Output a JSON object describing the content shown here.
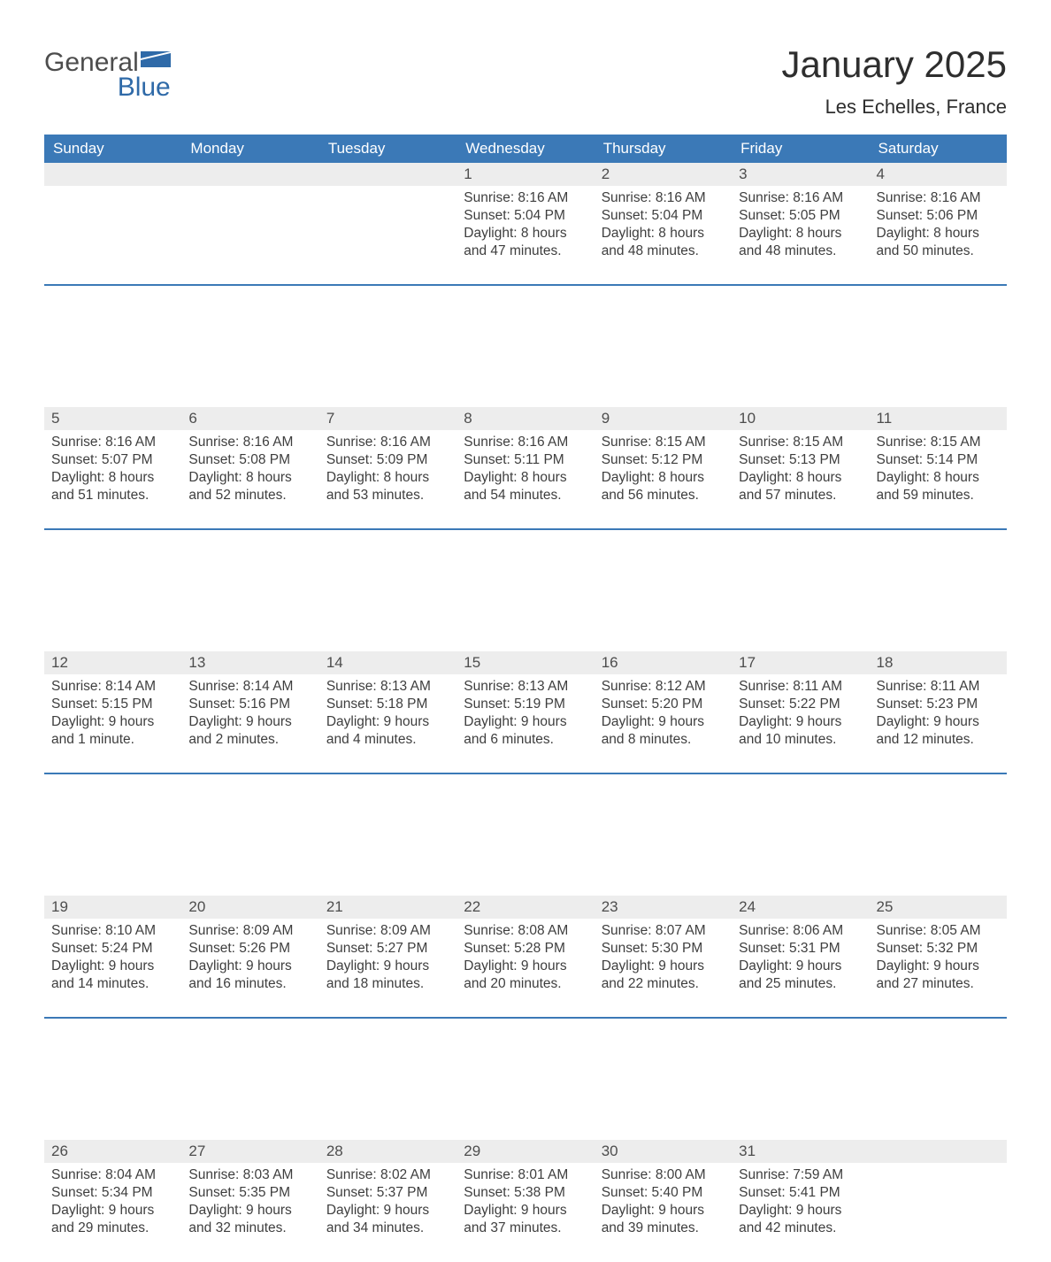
{
  "brand": {
    "word1": "General",
    "word2": "Blue",
    "colors": {
      "word1": "#4d4d4d",
      "word2": "#2f6aa8",
      "shape": "#2f6aa8"
    }
  },
  "title": {
    "month": "January 2025",
    "location": "Les Echelles, France",
    "month_fontsize": 42,
    "location_fontsize": 22,
    "text_color": "#2e2e2e"
  },
  "calendar": {
    "weekday_headers": [
      "Sunday",
      "Monday",
      "Tuesday",
      "Wednesday",
      "Thursday",
      "Friday",
      "Saturday"
    ],
    "header_bg": "#3b79b7",
    "header_text_color": "#ffffff",
    "daynum_bg": "#ededed",
    "daynum_text_color": "#4d4d4d",
    "cell_text_color": "#3e3e3e",
    "divider_color": "#3b79b7",
    "header_fontsize": 17,
    "daynum_fontsize": 17,
    "cell_fontsize": 15.5,
    "weeks": [
      [
        null,
        null,
        null,
        {
          "n": "1",
          "sunrise": "Sunrise: 8:16 AM",
          "sunset": "Sunset: 5:04 PM",
          "daylight": "Daylight: 8 hours and 47 minutes."
        },
        {
          "n": "2",
          "sunrise": "Sunrise: 8:16 AM",
          "sunset": "Sunset: 5:04 PM",
          "daylight": "Daylight: 8 hours and 48 minutes."
        },
        {
          "n": "3",
          "sunrise": "Sunrise: 8:16 AM",
          "sunset": "Sunset: 5:05 PM",
          "daylight": "Daylight: 8 hours and 48 minutes."
        },
        {
          "n": "4",
          "sunrise": "Sunrise: 8:16 AM",
          "sunset": "Sunset: 5:06 PM",
          "daylight": "Daylight: 8 hours and 50 minutes."
        }
      ],
      [
        {
          "n": "5",
          "sunrise": "Sunrise: 8:16 AM",
          "sunset": "Sunset: 5:07 PM",
          "daylight": "Daylight: 8 hours and 51 minutes."
        },
        {
          "n": "6",
          "sunrise": "Sunrise: 8:16 AM",
          "sunset": "Sunset: 5:08 PM",
          "daylight": "Daylight: 8 hours and 52 minutes."
        },
        {
          "n": "7",
          "sunrise": "Sunrise: 8:16 AM",
          "sunset": "Sunset: 5:09 PM",
          "daylight": "Daylight: 8 hours and 53 minutes."
        },
        {
          "n": "8",
          "sunrise": "Sunrise: 8:16 AM",
          "sunset": "Sunset: 5:11 PM",
          "daylight": "Daylight: 8 hours and 54 minutes."
        },
        {
          "n": "9",
          "sunrise": "Sunrise: 8:15 AM",
          "sunset": "Sunset: 5:12 PM",
          "daylight": "Daylight: 8 hours and 56 minutes."
        },
        {
          "n": "10",
          "sunrise": "Sunrise: 8:15 AM",
          "sunset": "Sunset: 5:13 PM",
          "daylight": "Daylight: 8 hours and 57 minutes."
        },
        {
          "n": "11",
          "sunrise": "Sunrise: 8:15 AM",
          "sunset": "Sunset: 5:14 PM",
          "daylight": "Daylight: 8 hours and 59 minutes."
        }
      ],
      [
        {
          "n": "12",
          "sunrise": "Sunrise: 8:14 AM",
          "sunset": "Sunset: 5:15 PM",
          "daylight": "Daylight: 9 hours and 1 minute."
        },
        {
          "n": "13",
          "sunrise": "Sunrise: 8:14 AM",
          "sunset": "Sunset: 5:16 PM",
          "daylight": "Daylight: 9 hours and 2 minutes."
        },
        {
          "n": "14",
          "sunrise": "Sunrise: 8:13 AM",
          "sunset": "Sunset: 5:18 PM",
          "daylight": "Daylight: 9 hours and 4 minutes."
        },
        {
          "n": "15",
          "sunrise": "Sunrise: 8:13 AM",
          "sunset": "Sunset: 5:19 PM",
          "daylight": "Daylight: 9 hours and 6 minutes."
        },
        {
          "n": "16",
          "sunrise": "Sunrise: 8:12 AM",
          "sunset": "Sunset: 5:20 PM",
          "daylight": "Daylight: 9 hours and 8 minutes."
        },
        {
          "n": "17",
          "sunrise": "Sunrise: 8:11 AM",
          "sunset": "Sunset: 5:22 PM",
          "daylight": "Daylight: 9 hours and 10 minutes."
        },
        {
          "n": "18",
          "sunrise": "Sunrise: 8:11 AM",
          "sunset": "Sunset: 5:23 PM",
          "daylight": "Daylight: 9 hours and 12 minutes."
        }
      ],
      [
        {
          "n": "19",
          "sunrise": "Sunrise: 8:10 AM",
          "sunset": "Sunset: 5:24 PM",
          "daylight": "Daylight: 9 hours and 14 minutes."
        },
        {
          "n": "20",
          "sunrise": "Sunrise: 8:09 AM",
          "sunset": "Sunset: 5:26 PM",
          "daylight": "Daylight: 9 hours and 16 minutes."
        },
        {
          "n": "21",
          "sunrise": "Sunrise: 8:09 AM",
          "sunset": "Sunset: 5:27 PM",
          "daylight": "Daylight: 9 hours and 18 minutes."
        },
        {
          "n": "22",
          "sunrise": "Sunrise: 8:08 AM",
          "sunset": "Sunset: 5:28 PM",
          "daylight": "Daylight: 9 hours and 20 minutes."
        },
        {
          "n": "23",
          "sunrise": "Sunrise: 8:07 AM",
          "sunset": "Sunset: 5:30 PM",
          "daylight": "Daylight: 9 hours and 22 minutes."
        },
        {
          "n": "24",
          "sunrise": "Sunrise: 8:06 AM",
          "sunset": "Sunset: 5:31 PM",
          "daylight": "Daylight: 9 hours and 25 minutes."
        },
        {
          "n": "25",
          "sunrise": "Sunrise: 8:05 AM",
          "sunset": "Sunset: 5:32 PM",
          "daylight": "Daylight: 9 hours and 27 minutes."
        }
      ],
      [
        {
          "n": "26",
          "sunrise": "Sunrise: 8:04 AM",
          "sunset": "Sunset: 5:34 PM",
          "daylight": "Daylight: 9 hours and 29 minutes."
        },
        {
          "n": "27",
          "sunrise": "Sunrise: 8:03 AM",
          "sunset": "Sunset: 5:35 PM",
          "daylight": "Daylight: 9 hours and 32 minutes."
        },
        {
          "n": "28",
          "sunrise": "Sunrise: 8:02 AM",
          "sunset": "Sunset: 5:37 PM",
          "daylight": "Daylight: 9 hours and 34 minutes."
        },
        {
          "n": "29",
          "sunrise": "Sunrise: 8:01 AM",
          "sunset": "Sunset: 5:38 PM",
          "daylight": "Daylight: 9 hours and 37 minutes."
        },
        {
          "n": "30",
          "sunrise": "Sunrise: 8:00 AM",
          "sunset": "Sunset: 5:40 PM",
          "daylight": "Daylight: 9 hours and 39 minutes."
        },
        {
          "n": "31",
          "sunrise": "Sunrise: 7:59 AM",
          "sunset": "Sunset: 5:41 PM",
          "daylight": "Daylight: 9 hours and 42 minutes."
        },
        null
      ]
    ]
  }
}
